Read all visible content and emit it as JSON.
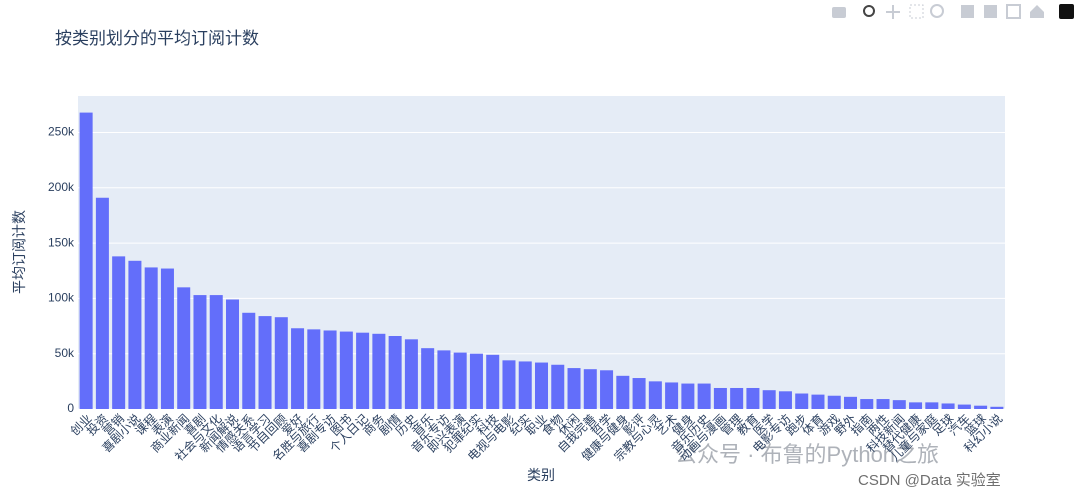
{
  "chart_data": {
    "type": "bar",
    "title": "按类别划分的平均订阅计数",
    "x_label": "类别",
    "y_label": "平均订阅计数",
    "categories": [
      "创业",
      "投资",
      "营销",
      "喜剧小说",
      "课程",
      "表演",
      "商业新闻",
      "喜剧",
      "社会与文化",
      "新闻解说",
      "情感关系",
      "语言学习",
      "节目回顾",
      "爱好",
      "名胜与旅行",
      "喜剧专访",
      "图书",
      "个人日记",
      "商务",
      "剧情",
      "历史",
      "音乐",
      "音乐专访",
      "即兴表演",
      "犯罪纪实",
      "科技",
      "电视与电影",
      "纪实",
      "职业",
      "食物",
      "休闲",
      "自我完善",
      "哲学",
      "健康与健身",
      "影评",
      "宗教与心灵",
      "艺术",
      "健身",
      "音乐历史",
      "动画与漫画",
      "管理",
      "教育",
      "医学",
      "电影专访",
      "跑步",
      "体育",
      "游戏",
      "野外",
      "指南",
      "两性",
      "科技新闻",
      "替代健康",
      "儿童与家庭",
      "足球",
      "汽车",
      "篮球",
      "科幻小说"
    ],
    "values": [
      268000,
      191000,
      138000,
      134000,
      128000,
      127000,
      110000,
      103000,
      103000,
      99000,
      87000,
      84000,
      83000,
      73000,
      72000,
      71000,
      70000,
      69000,
      68000,
      66000,
      63000,
      55000,
      53000,
      51000,
      50000,
      49000,
      44000,
      43000,
      42000,
      40000,
      37000,
      36000,
      35000,
      30000,
      28000,
      25000,
      24000,
      23000,
      23000,
      19000,
      19000,
      19000,
      17000,
      16000,
      14000,
      13000,
      12000,
      11000,
      9000,
      9000,
      8000,
      6000,
      6000,
      5000,
      4000,
      3000,
      2000
    ],
    "color": "#636efa",
    "ylim": [
      0,
      283000
    ],
    "yticks": [
      0,
      {
        "value": 50000,
        "label": "50k"
      },
      {
        "value": 100000,
        "label": "100k"
      },
      {
        "value": 150000,
        "label": "150k"
      },
      {
        "value": 200000,
        "label": "200k"
      },
      {
        "value": 250000,
        "label": "250k"
      }
    ],
    "grid": true,
    "annotations": [
      "公众号 · 布鲁的Python之旅",
      "CSDN @Data 实验室"
    ]
  }
}
